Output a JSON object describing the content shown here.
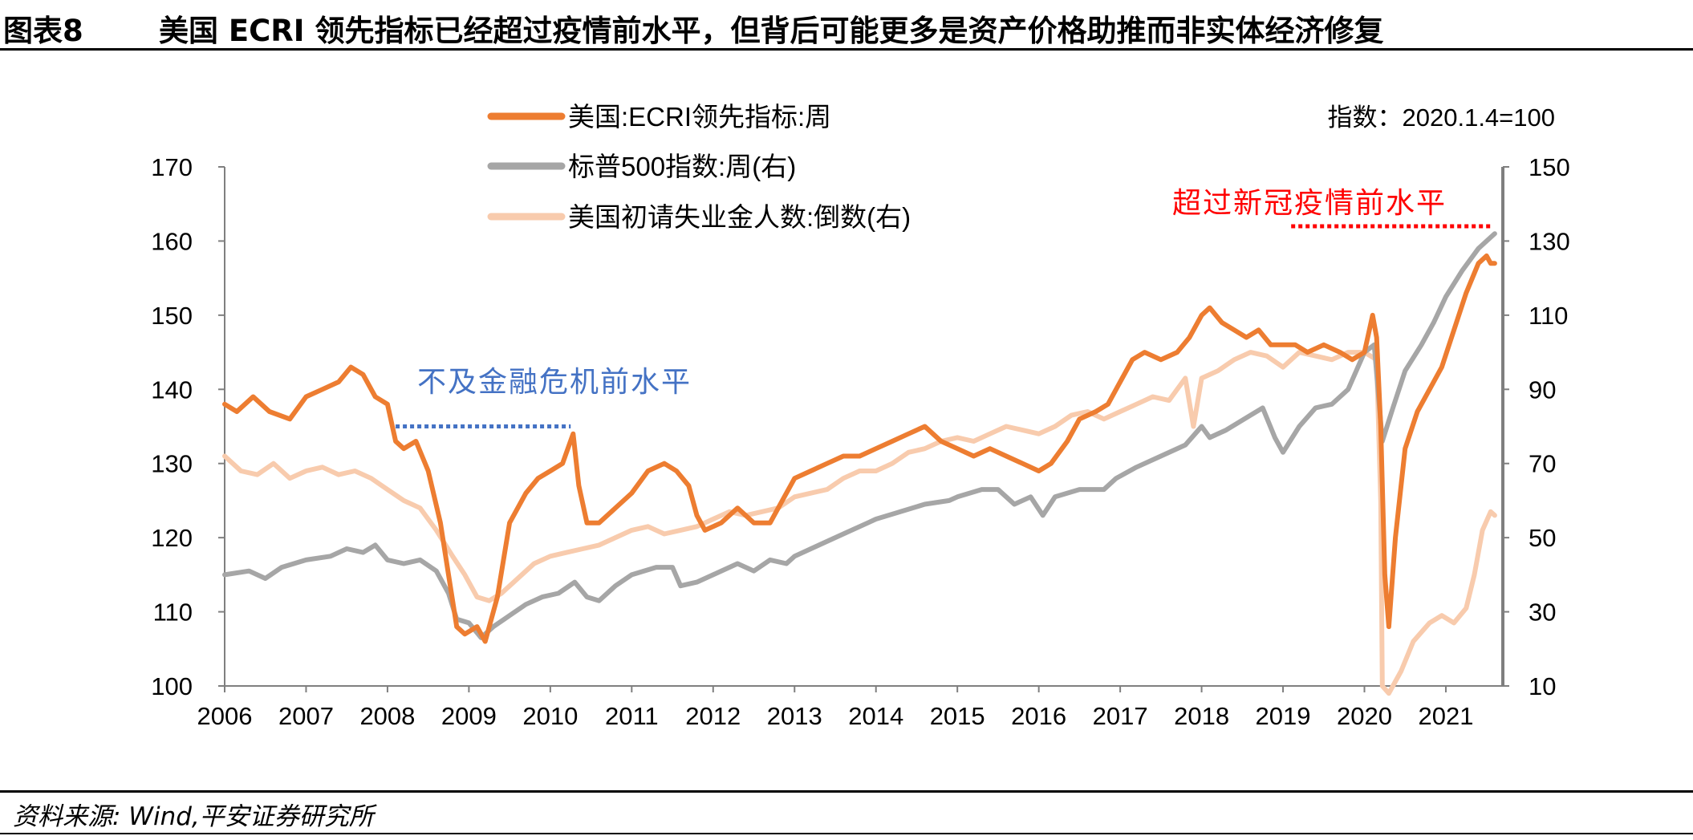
{
  "header": {
    "figure_label": "图表8",
    "title": "美国 ECRI 领先指标已经超过疫情前水平，但背后可能更多是资产价格助推而非实体经济修复"
  },
  "source": "资料来源: Wind,平安证券研究所",
  "colors": {
    "ecri": "#ED7D31",
    "sp500": "#A6A6A6",
    "claims": "#F8CBAD",
    "annotation_red": "#FF0000",
    "annotation_blue": "#4472C4"
  },
  "chart_data": {
    "type": "line",
    "index_note": "指数：2020.1.4=100",
    "x_ticks": [
      "2006",
      "2007",
      "2008",
      "2009",
      "2010",
      "2011",
      "2012",
      "2013",
      "2014",
      "2015",
      "2016",
      "2017",
      "2018",
      "2019",
      "2020",
      "2021"
    ],
    "x_range": [
      2006.0,
      2021.7
    ],
    "left_axis": {
      "ticks": [
        100,
        110,
        120,
        130,
        140,
        150,
        160,
        170
      ],
      "range": [
        100,
        170
      ]
    },
    "right_axis": {
      "ticks": [
        10,
        30,
        50,
        70,
        90,
        110,
        130,
        150
      ],
      "range": [
        10,
        150
      ]
    },
    "annotations": [
      {
        "text": "不及金融危机前水平",
        "color": "blue",
        "line": {
          "x": [
            2008.1,
            2010.25
          ],
          "y": 135,
          "axis": "left"
        }
      },
      {
        "text": "超过新冠疫情前水平",
        "color": "red",
        "line": {
          "x": [
            2019.1,
            2021.55
          ],
          "y": 162,
          "axis": "left"
        }
      }
    ],
    "series": [
      {
        "name": "美国:ECRI领先指标:周",
        "axis": "left",
        "points": [
          [
            2006.0,
            138
          ],
          [
            2006.15,
            137
          ],
          [
            2006.35,
            139
          ],
          [
            2006.55,
            137
          ],
          [
            2006.8,
            136
          ],
          [
            2007.0,
            139
          ],
          [
            2007.2,
            140
          ],
          [
            2007.4,
            141
          ],
          [
            2007.55,
            143
          ],
          [
            2007.7,
            142
          ],
          [
            2007.85,
            139
          ],
          [
            2008.0,
            138
          ],
          [
            2008.1,
            133
          ],
          [
            2008.2,
            132
          ],
          [
            2008.35,
            133
          ],
          [
            2008.5,
            129
          ],
          [
            2008.65,
            122
          ],
          [
            2008.75,
            115
          ],
          [
            2008.85,
            108
          ],
          [
            2008.95,
            107
          ],
          [
            2009.1,
            108
          ],
          [
            2009.2,
            106
          ],
          [
            2009.35,
            112
          ],
          [
            2009.5,
            122
          ],
          [
            2009.7,
            126
          ],
          [
            2009.85,
            128
          ],
          [
            2010.0,
            129
          ],
          [
            2010.15,
            130
          ],
          [
            2010.28,
            134
          ],
          [
            2010.35,
            127
          ],
          [
            2010.45,
            122
          ],
          [
            2010.6,
            122
          ],
          [
            2010.8,
            124
          ],
          [
            2011.0,
            126
          ],
          [
            2011.2,
            129
          ],
          [
            2011.4,
            130
          ],
          [
            2011.55,
            129
          ],
          [
            2011.7,
            127
          ],
          [
            2011.8,
            123
          ],
          [
            2011.9,
            121
          ],
          [
            2012.1,
            122
          ],
          [
            2012.3,
            124
          ],
          [
            2012.5,
            122
          ],
          [
            2012.7,
            122
          ],
          [
            2012.85,
            125
          ],
          [
            2013.0,
            128
          ],
          [
            2013.2,
            129
          ],
          [
            2013.4,
            130
          ],
          [
            2013.6,
            131
          ],
          [
            2013.8,
            131
          ],
          [
            2014.0,
            132
          ],
          [
            2014.2,
            133
          ],
          [
            2014.4,
            134
          ],
          [
            2014.6,
            135
          ],
          [
            2014.8,
            133
          ],
          [
            2015.0,
            132
          ],
          [
            2015.2,
            131
          ],
          [
            2015.4,
            132
          ],
          [
            2015.6,
            131
          ],
          [
            2015.8,
            130
          ],
          [
            2016.0,
            129
          ],
          [
            2016.15,
            130
          ],
          [
            2016.35,
            133
          ],
          [
            2016.5,
            136
          ],
          [
            2016.7,
            137
          ],
          [
            2016.85,
            138
          ],
          [
            2017.0,
            141
          ],
          [
            2017.15,
            144
          ],
          [
            2017.3,
            145
          ],
          [
            2017.5,
            144
          ],
          [
            2017.7,
            145
          ],
          [
            2017.85,
            147
          ],
          [
            2018.0,
            150
          ],
          [
            2018.1,
            151
          ],
          [
            2018.25,
            149
          ],
          [
            2018.4,
            148
          ],
          [
            2018.55,
            147
          ],
          [
            2018.7,
            148
          ],
          [
            2018.85,
            146
          ],
          [
            2019.0,
            146
          ],
          [
            2019.15,
            146
          ],
          [
            2019.3,
            145
          ],
          [
            2019.5,
            146
          ],
          [
            2019.7,
            145
          ],
          [
            2019.85,
            144
          ],
          [
            2020.0,
            145
          ],
          [
            2020.1,
            150
          ],
          [
            2020.15,
            147
          ],
          [
            2020.2,
            135
          ],
          [
            2020.25,
            115
          ],
          [
            2020.3,
            108
          ],
          [
            2020.38,
            120
          ],
          [
            2020.5,
            132
          ],
          [
            2020.65,
            137
          ],
          [
            2020.8,
            140
          ],
          [
            2020.95,
            143
          ],
          [
            2021.1,
            148
          ],
          [
            2021.25,
            153
          ],
          [
            2021.4,
            157
          ],
          [
            2021.5,
            158
          ],
          [
            2021.55,
            157
          ],
          [
            2021.6,
            157
          ]
        ]
      },
      {
        "name": "标普500指数:周(右)",
        "axis": "right",
        "points": [
          [
            2006.0,
            40
          ],
          [
            2006.3,
            41
          ],
          [
            2006.5,
            39
          ],
          [
            2006.7,
            42
          ],
          [
            2007.0,
            44
          ],
          [
            2007.3,
            45
          ],
          [
            2007.5,
            47
          ],
          [
            2007.7,
            46
          ],
          [
            2007.85,
            48
          ],
          [
            2008.0,
            44
          ],
          [
            2008.2,
            43
          ],
          [
            2008.4,
            44
          ],
          [
            2008.6,
            41
          ],
          [
            2008.75,
            35
          ],
          [
            2008.85,
            28
          ],
          [
            2009.0,
            27
          ],
          [
            2009.15,
            23
          ],
          [
            2009.3,
            26
          ],
          [
            2009.5,
            29
          ],
          [
            2009.7,
            32
          ],
          [
            2009.9,
            34
          ],
          [
            2010.1,
            35
          ],
          [
            2010.3,
            38
          ],
          [
            2010.45,
            34
          ],
          [
            2010.6,
            33
          ],
          [
            2010.8,
            37
          ],
          [
            2011.0,
            40
          ],
          [
            2011.3,
            42
          ],
          [
            2011.5,
            42
          ],
          [
            2011.6,
            37
          ],
          [
            2011.8,
            38
          ],
          [
            2012.0,
            40
          ],
          [
            2012.3,
            43
          ],
          [
            2012.5,
            41
          ],
          [
            2012.7,
            44
          ],
          [
            2012.9,
            43
          ],
          [
            2013.0,
            45
          ],
          [
            2013.3,
            48
          ],
          [
            2013.6,
            51
          ],
          [
            2013.9,
            54
          ],
          [
            2014.0,
            55
          ],
          [
            2014.3,
            57
          ],
          [
            2014.6,
            59
          ],
          [
            2014.9,
            60
          ],
          [
            2015.0,
            61
          ],
          [
            2015.3,
            63
          ],
          [
            2015.5,
            63
          ],
          [
            2015.7,
            59
          ],
          [
            2015.9,
            61
          ],
          [
            2016.05,
            56
          ],
          [
            2016.2,
            61
          ],
          [
            2016.5,
            63
          ],
          [
            2016.8,
            63
          ],
          [
            2016.95,
            66
          ],
          [
            2017.2,
            69
          ],
          [
            2017.5,
            72
          ],
          [
            2017.8,
            75
          ],
          [
            2018.0,
            80
          ],
          [
            2018.1,
            77
          ],
          [
            2018.3,
            79
          ],
          [
            2018.6,
            83
          ],
          [
            2018.75,
            85
          ],
          [
            2018.9,
            77
          ],
          [
            2019.0,
            73
          ],
          [
            2019.2,
            80
          ],
          [
            2019.4,
            85
          ],
          [
            2019.6,
            86
          ],
          [
            2019.8,
            90
          ],
          [
            2020.0,
            100
          ],
          [
            2020.12,
            102
          ],
          [
            2020.22,
            76
          ],
          [
            2020.35,
            85
          ],
          [
            2020.5,
            95
          ],
          [
            2020.7,
            102
          ],
          [
            2020.85,
            108
          ],
          [
            2021.0,
            115
          ],
          [
            2021.2,
            122
          ],
          [
            2021.4,
            128
          ],
          [
            2021.55,
            131
          ],
          [
            2021.6,
            132
          ]
        ]
      },
      {
        "name": "美国初请失业金人数:倒数(右)",
        "axis": "right",
        "points": [
          [
            2006.0,
            72
          ],
          [
            2006.2,
            68
          ],
          [
            2006.4,
            67
          ],
          [
            2006.6,
            70
          ],
          [
            2006.8,
            66
          ],
          [
            2007.0,
            68
          ],
          [
            2007.2,
            69
          ],
          [
            2007.4,
            67
          ],
          [
            2007.6,
            68
          ],
          [
            2007.8,
            66
          ],
          [
            2008.0,
            63
          ],
          [
            2008.2,
            60
          ],
          [
            2008.4,
            58
          ],
          [
            2008.6,
            52
          ],
          [
            2008.8,
            45
          ],
          [
            2008.95,
            40
          ],
          [
            2009.1,
            34
          ],
          [
            2009.25,
            33
          ],
          [
            2009.4,
            35
          ],
          [
            2009.6,
            39
          ],
          [
            2009.8,
            43
          ],
          [
            2010.0,
            45
          ],
          [
            2010.2,
            46
          ],
          [
            2010.4,
            47
          ],
          [
            2010.6,
            48
          ],
          [
            2010.8,
            50
          ],
          [
            2011.0,
            52
          ],
          [
            2011.2,
            53
          ],
          [
            2011.4,
            51
          ],
          [
            2011.6,
            52
          ],
          [
            2011.8,
            53
          ],
          [
            2012.0,
            55
          ],
          [
            2012.2,
            57
          ],
          [
            2012.4,
            56
          ],
          [
            2012.6,
            57
          ],
          [
            2012.8,
            58
          ],
          [
            2013.0,
            61
          ],
          [
            2013.2,
            62
          ],
          [
            2013.4,
            63
          ],
          [
            2013.6,
            66
          ],
          [
            2013.8,
            68
          ],
          [
            2014.0,
            68
          ],
          [
            2014.2,
            70
          ],
          [
            2014.4,
            73
          ],
          [
            2014.6,
            74
          ],
          [
            2014.8,
            76
          ],
          [
            2015.0,
            77
          ],
          [
            2015.2,
            76
          ],
          [
            2015.4,
            78
          ],
          [
            2015.6,
            80
          ],
          [
            2015.8,
            79
          ],
          [
            2016.0,
            78
          ],
          [
            2016.2,
            80
          ],
          [
            2016.4,
            83
          ],
          [
            2016.6,
            84
          ],
          [
            2016.8,
            82
          ],
          [
            2017.0,
            84
          ],
          [
            2017.2,
            86
          ],
          [
            2017.4,
            88
          ],
          [
            2017.6,
            87
          ],
          [
            2017.8,
            93
          ],
          [
            2017.9,
            80
          ],
          [
            2018.0,
            93
          ],
          [
            2018.2,
            95
          ],
          [
            2018.4,
            98
          ],
          [
            2018.6,
            100
          ],
          [
            2018.8,
            99
          ],
          [
            2019.0,
            96
          ],
          [
            2019.2,
            100
          ],
          [
            2019.4,
            99
          ],
          [
            2019.6,
            98
          ],
          [
            2019.8,
            100
          ],
          [
            2020.0,
            100
          ],
          [
            2020.15,
            98
          ],
          [
            2020.2,
            60
          ],
          [
            2020.22,
            10
          ],
          [
            2020.3,
            8
          ],
          [
            2020.45,
            14
          ],
          [
            2020.6,
            22
          ],
          [
            2020.8,
            27
          ],
          [
            2020.95,
            29
          ],
          [
            2021.1,
            27
          ],
          [
            2021.25,
            31
          ],
          [
            2021.35,
            40
          ],
          [
            2021.45,
            52
          ],
          [
            2021.55,
            57
          ],
          [
            2021.6,
            56
          ]
        ]
      }
    ]
  }
}
